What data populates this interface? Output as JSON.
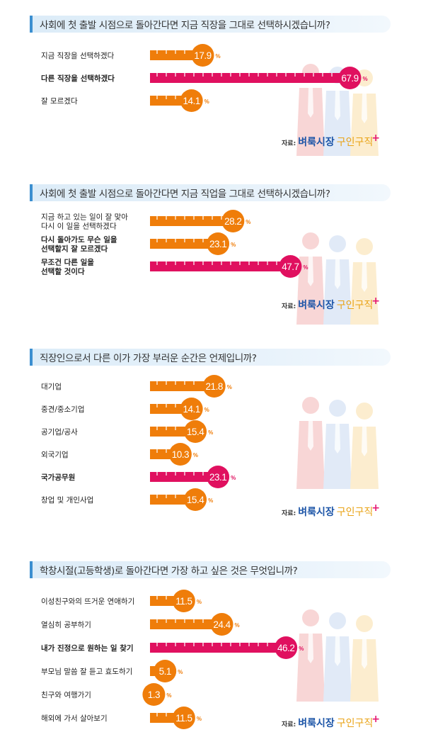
{
  "source": {
    "prefix": "자료:",
    "brand_a": "벼룩시장",
    "brand_b": "구인구직"
  },
  "colors": {
    "orange": "#ef7d0a",
    "pink": "#e0105f",
    "accent_blue": "#3b8fd0"
  },
  "sections": [
    {
      "question": "사회에 첫 출발 시점으로 돌아간다면 지금 직장을 그대로 선택하시겠습니까?",
      "chart_data": {
        "type": "bar",
        "categories": [
          [
            "지금 직장을 선택하겠다"
          ],
          [
            "다른 직장을 선택하겠다"
          ],
          [
            "잘 모르겠다"
          ]
        ],
        "values": [
          17.9,
          67.9,
          14.1
        ],
        "highlight": [
          false,
          true,
          false
        ],
        "unit": "%"
      }
    },
    {
      "question": "사회에 첫 출발 시점으로 돌아간다면 지금 직업을 그대로 선택하시겠습니까?",
      "chart_data": {
        "type": "bar",
        "categories": [
          [
            "지금 하고 있는 일이 잘 맞아",
            "다시 이 일을 선택하겠다"
          ],
          [
            "다시 돌아가도 무슨 일을",
            "선택할지 잘 모르겠다"
          ],
          [
            "무조건 다른 일을",
            "선택할 것이다"
          ]
        ],
        "values": [
          28.2,
          23.1,
          47.7
        ],
        "highlight": [
          false,
          false,
          true
        ],
        "bold": [
          false,
          true,
          false
        ],
        "unit": "%"
      }
    },
    {
      "question": "직장인으로서 다른 이가 가장 부러운 순간은 언제입니까?",
      "chart_data": {
        "type": "bar",
        "categories": [
          [
            "대기업"
          ],
          [
            "중견/중소기업"
          ],
          [
            "공기업/공사"
          ],
          [
            "외국기업"
          ],
          [
            "국가공무원"
          ],
          [
            "창업 및 개인사업"
          ]
        ],
        "values": [
          21.8,
          14.1,
          15.4,
          10.3,
          23.1,
          15.4
        ],
        "highlight": [
          false,
          false,
          false,
          false,
          true,
          false
        ],
        "unit": "%"
      }
    },
    {
      "question": "학창시절(고등학생)로 돌아간다면 가장 하고 싶은 것은 무엇입니까?",
      "chart_data": {
        "type": "bar",
        "categories": [
          [
            "이성친구와의 뜨거운 연애하기"
          ],
          [
            "열심히 공부하기"
          ],
          [
            "내가 진정으로 원하는 일 찾기"
          ],
          [
            "부모님 말씀 잘 듣고 효도하기"
          ],
          [
            "친구와 여행가기"
          ],
          [
            "해외에 가서 살아보기"
          ]
        ],
        "values": [
          11.5,
          24.4,
          46.2,
          5.1,
          1.3,
          11.5
        ],
        "highlight": [
          false,
          false,
          true,
          false,
          false,
          false
        ],
        "unit": "%"
      }
    }
  ]
}
